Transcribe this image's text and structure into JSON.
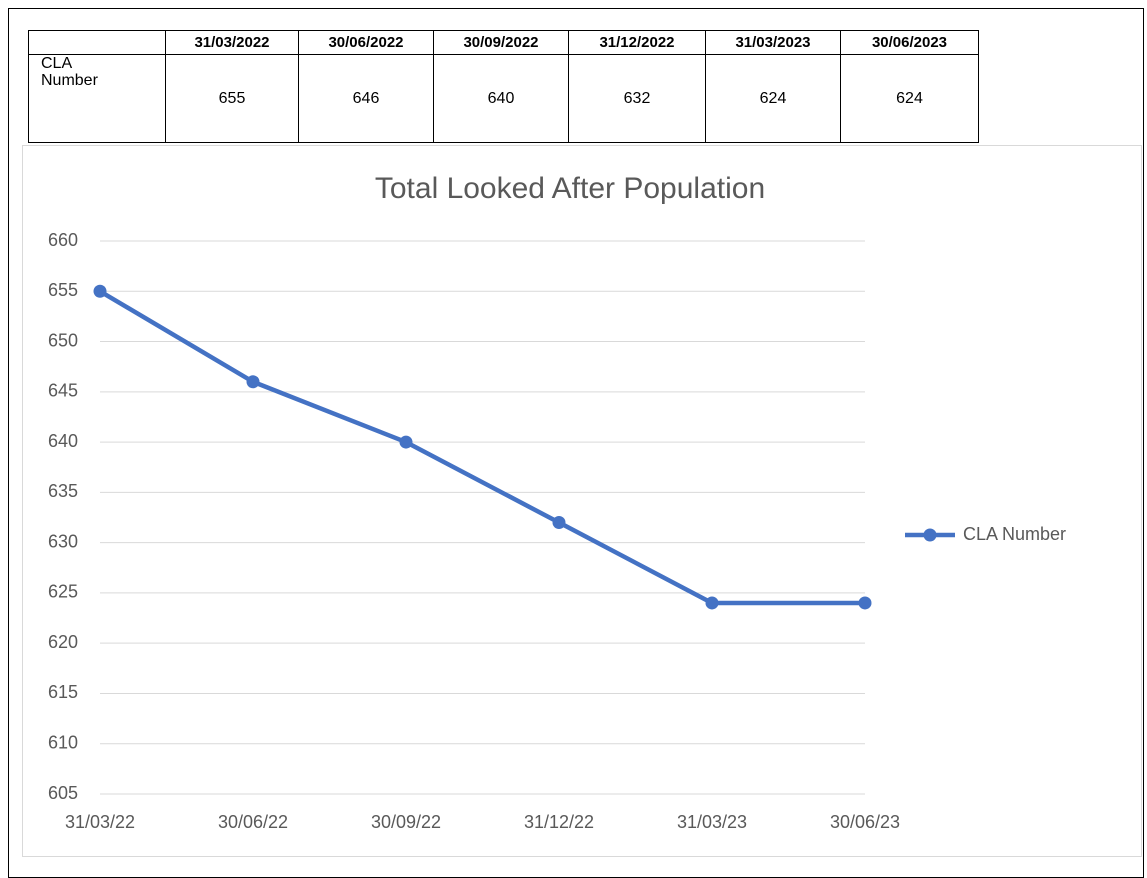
{
  "table": {
    "header": [
      "31/03/2022",
      "30/06/2022",
      "30/09/2022",
      "31/12/2022",
      "31/03/2023",
      "30/06/2023"
    ],
    "rows": [
      [
        "CLA Number",
        "655",
        "646",
        "640",
        "632",
        "624",
        "624"
      ]
    ]
  },
  "chart_data": {
    "type": "line",
    "title": "Total Looked After Population",
    "categories": [
      "31/03/22",
      "30/06/22",
      "30/09/22",
      "31/12/22",
      "31/03/23",
      "30/06/23"
    ],
    "series": [
      {
        "name": "CLA Number",
        "color": "#4472c4",
        "values": [
          655,
          646,
          640,
          632,
          624,
          624
        ]
      }
    ],
    "ylim": [
      605,
      660
    ],
    "yticks": [
      605,
      610,
      615,
      620,
      625,
      630,
      635,
      640,
      645,
      650,
      655,
      660
    ],
    "grid": true,
    "legend": "right"
  }
}
